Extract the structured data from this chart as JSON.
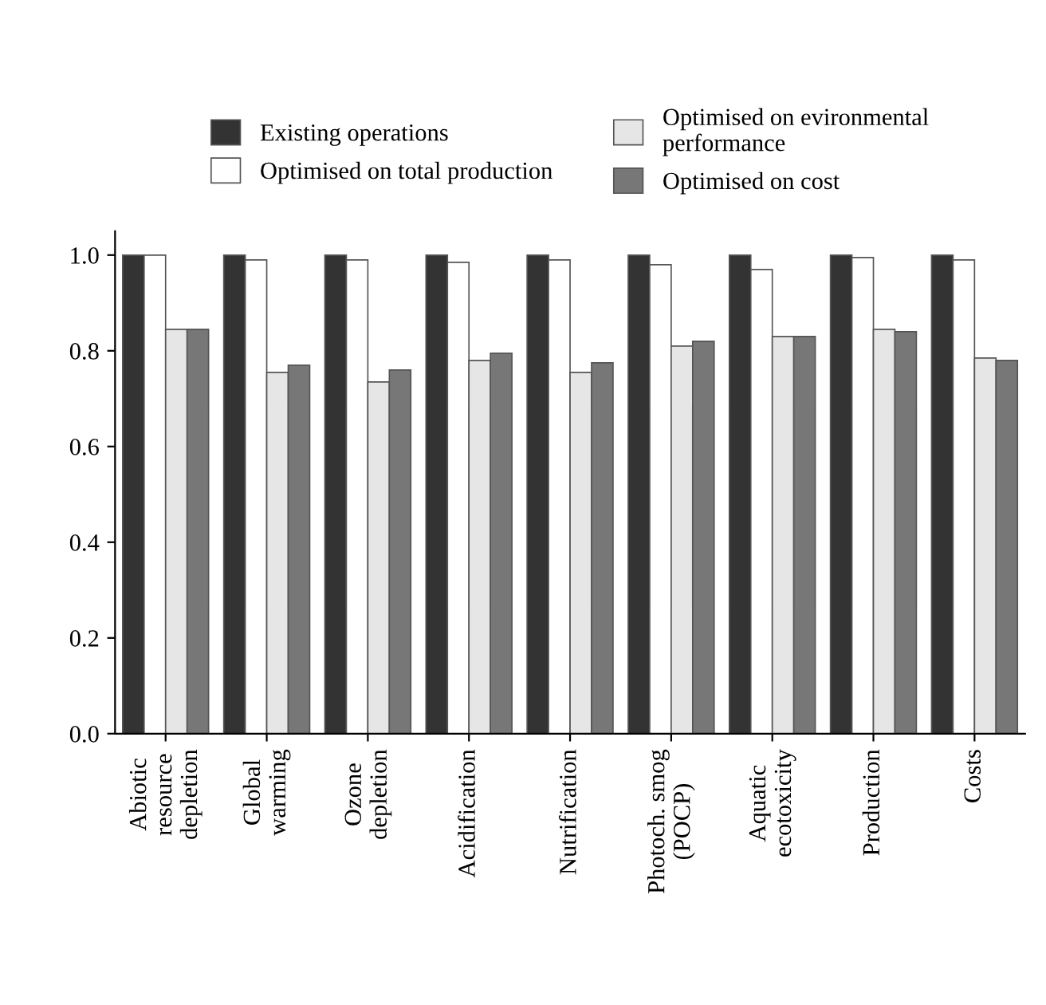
{
  "chart_data": {
    "type": "bar",
    "categories": [
      "Abiotic\nresource\ndepletion",
      "Global\nwarming",
      "Ozone\ndepletion",
      "Acidification",
      "Nutrification",
      "Photoch. smog\n(POCP)",
      "Aquatic\necotoxicity",
      "Production",
      "Costs"
    ],
    "series": [
      {
        "name": "Existing operations",
        "color": "#333333",
        "values": [
          1.0,
          1.0,
          1.0,
          1.0,
          1.0,
          1.0,
          1.0,
          1.0,
          1.0
        ]
      },
      {
        "name": "Optimised on total production",
        "color": "#ffffff",
        "values": [
          1.0,
          0.99,
          0.99,
          0.985,
          0.99,
          0.98,
          0.97,
          0.995,
          0.99
        ]
      },
      {
        "name": "Optimised on evironmental\nperformance",
        "color": "#e6e6e6",
        "values": [
          0.845,
          0.755,
          0.735,
          0.78,
          0.755,
          0.81,
          0.83,
          0.845,
          0.785
        ]
      },
      {
        "name": "Optimised on cost",
        "color": "#777777",
        "values": [
          0.845,
          0.77,
          0.76,
          0.795,
          0.775,
          0.82,
          0.83,
          0.84,
          0.78
        ]
      }
    ],
    "ylim": [
      0,
      1.05
    ],
    "yticks": [
      {
        "value": 0,
        "label": "0.0"
      },
      0.2,
      0.4,
      0.6,
      0.8,
      {
        "value": 1,
        "label": "1.0"
      }
    ],
    "grid": false,
    "legend": "top"
  }
}
